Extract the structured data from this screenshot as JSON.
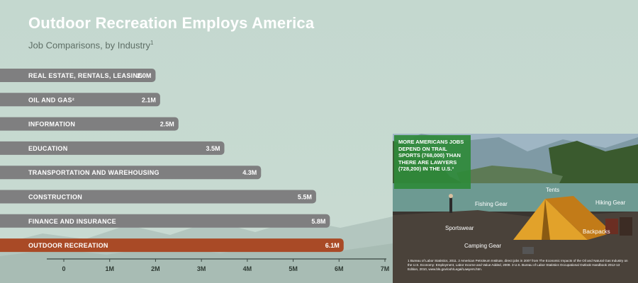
{
  "title": "Outdoor Recreation Employs America",
  "subtitle": "Job Comparisons, by Industry",
  "subtitle_footnote": "1",
  "chart_data": {
    "type": "bar",
    "orientation": "horizontal",
    "categories": [
      "REAL ESTATE, RENTALS, LEASING",
      "OIL AND GAS²",
      "INFORMATION",
      "EDUCATION",
      "TRANSPORTATION AND WAREHOUSING",
      "CONSTRUCTION",
      "FINANCE AND INSURANCE",
      "OUTDOOR RECREATION"
    ],
    "values": [
      2.0,
      2.1,
      2.5,
      3.5,
      4.3,
      5.5,
      5.8,
      6.1
    ],
    "value_labels": [
      "2.0M",
      "2.1M",
      "2.5M",
      "3.5M",
      "4.3M",
      "5.5M",
      "5.8M",
      "6.1M"
    ],
    "highlight_category": "OUTDOOR RECREATION",
    "xticks": [
      "0",
      "1M",
      "2M",
      "3M",
      "4M",
      "5M",
      "6M",
      "7M"
    ],
    "xlim": [
      0,
      7
    ],
    "grid": false,
    "colors": {
      "bar": "#7f7f80",
      "highlight": "#a94a26",
      "highlight_value": "#f0b64a",
      "axis": "#3a4640"
    }
  },
  "photo_panel": {
    "callout": "MORE AMERICANS JOBS DEPEND ON TRAIL SPORTS (768,000) THAN THERE ARE LAWYERS (728,200) IN THE U.S.³",
    "labels": {
      "fishing_gear": "Fishing Gear",
      "tents": "Tents",
      "hiking_gear": "Hiking Gear",
      "sportswear": "Sportswear",
      "backpacks": "Backpacks",
      "camping_gear": "Camping Gear"
    },
    "footnotes": "1 Bureau of Labor Statistics, 2011. 2 American Petroleum Institute, direct jobs in 2007 from The Economic Impacts of the Oil and Natural Gas Industry on the U.S. Economy: Employment, Labor Income and Value Added, 2009. 3 U.S. Bureau of Labor Statistics Occupational Outlook Handbook 2012-13 Edition, 2010, www.bls.gov/ooh/Legal/Lawyers.htm."
  }
}
